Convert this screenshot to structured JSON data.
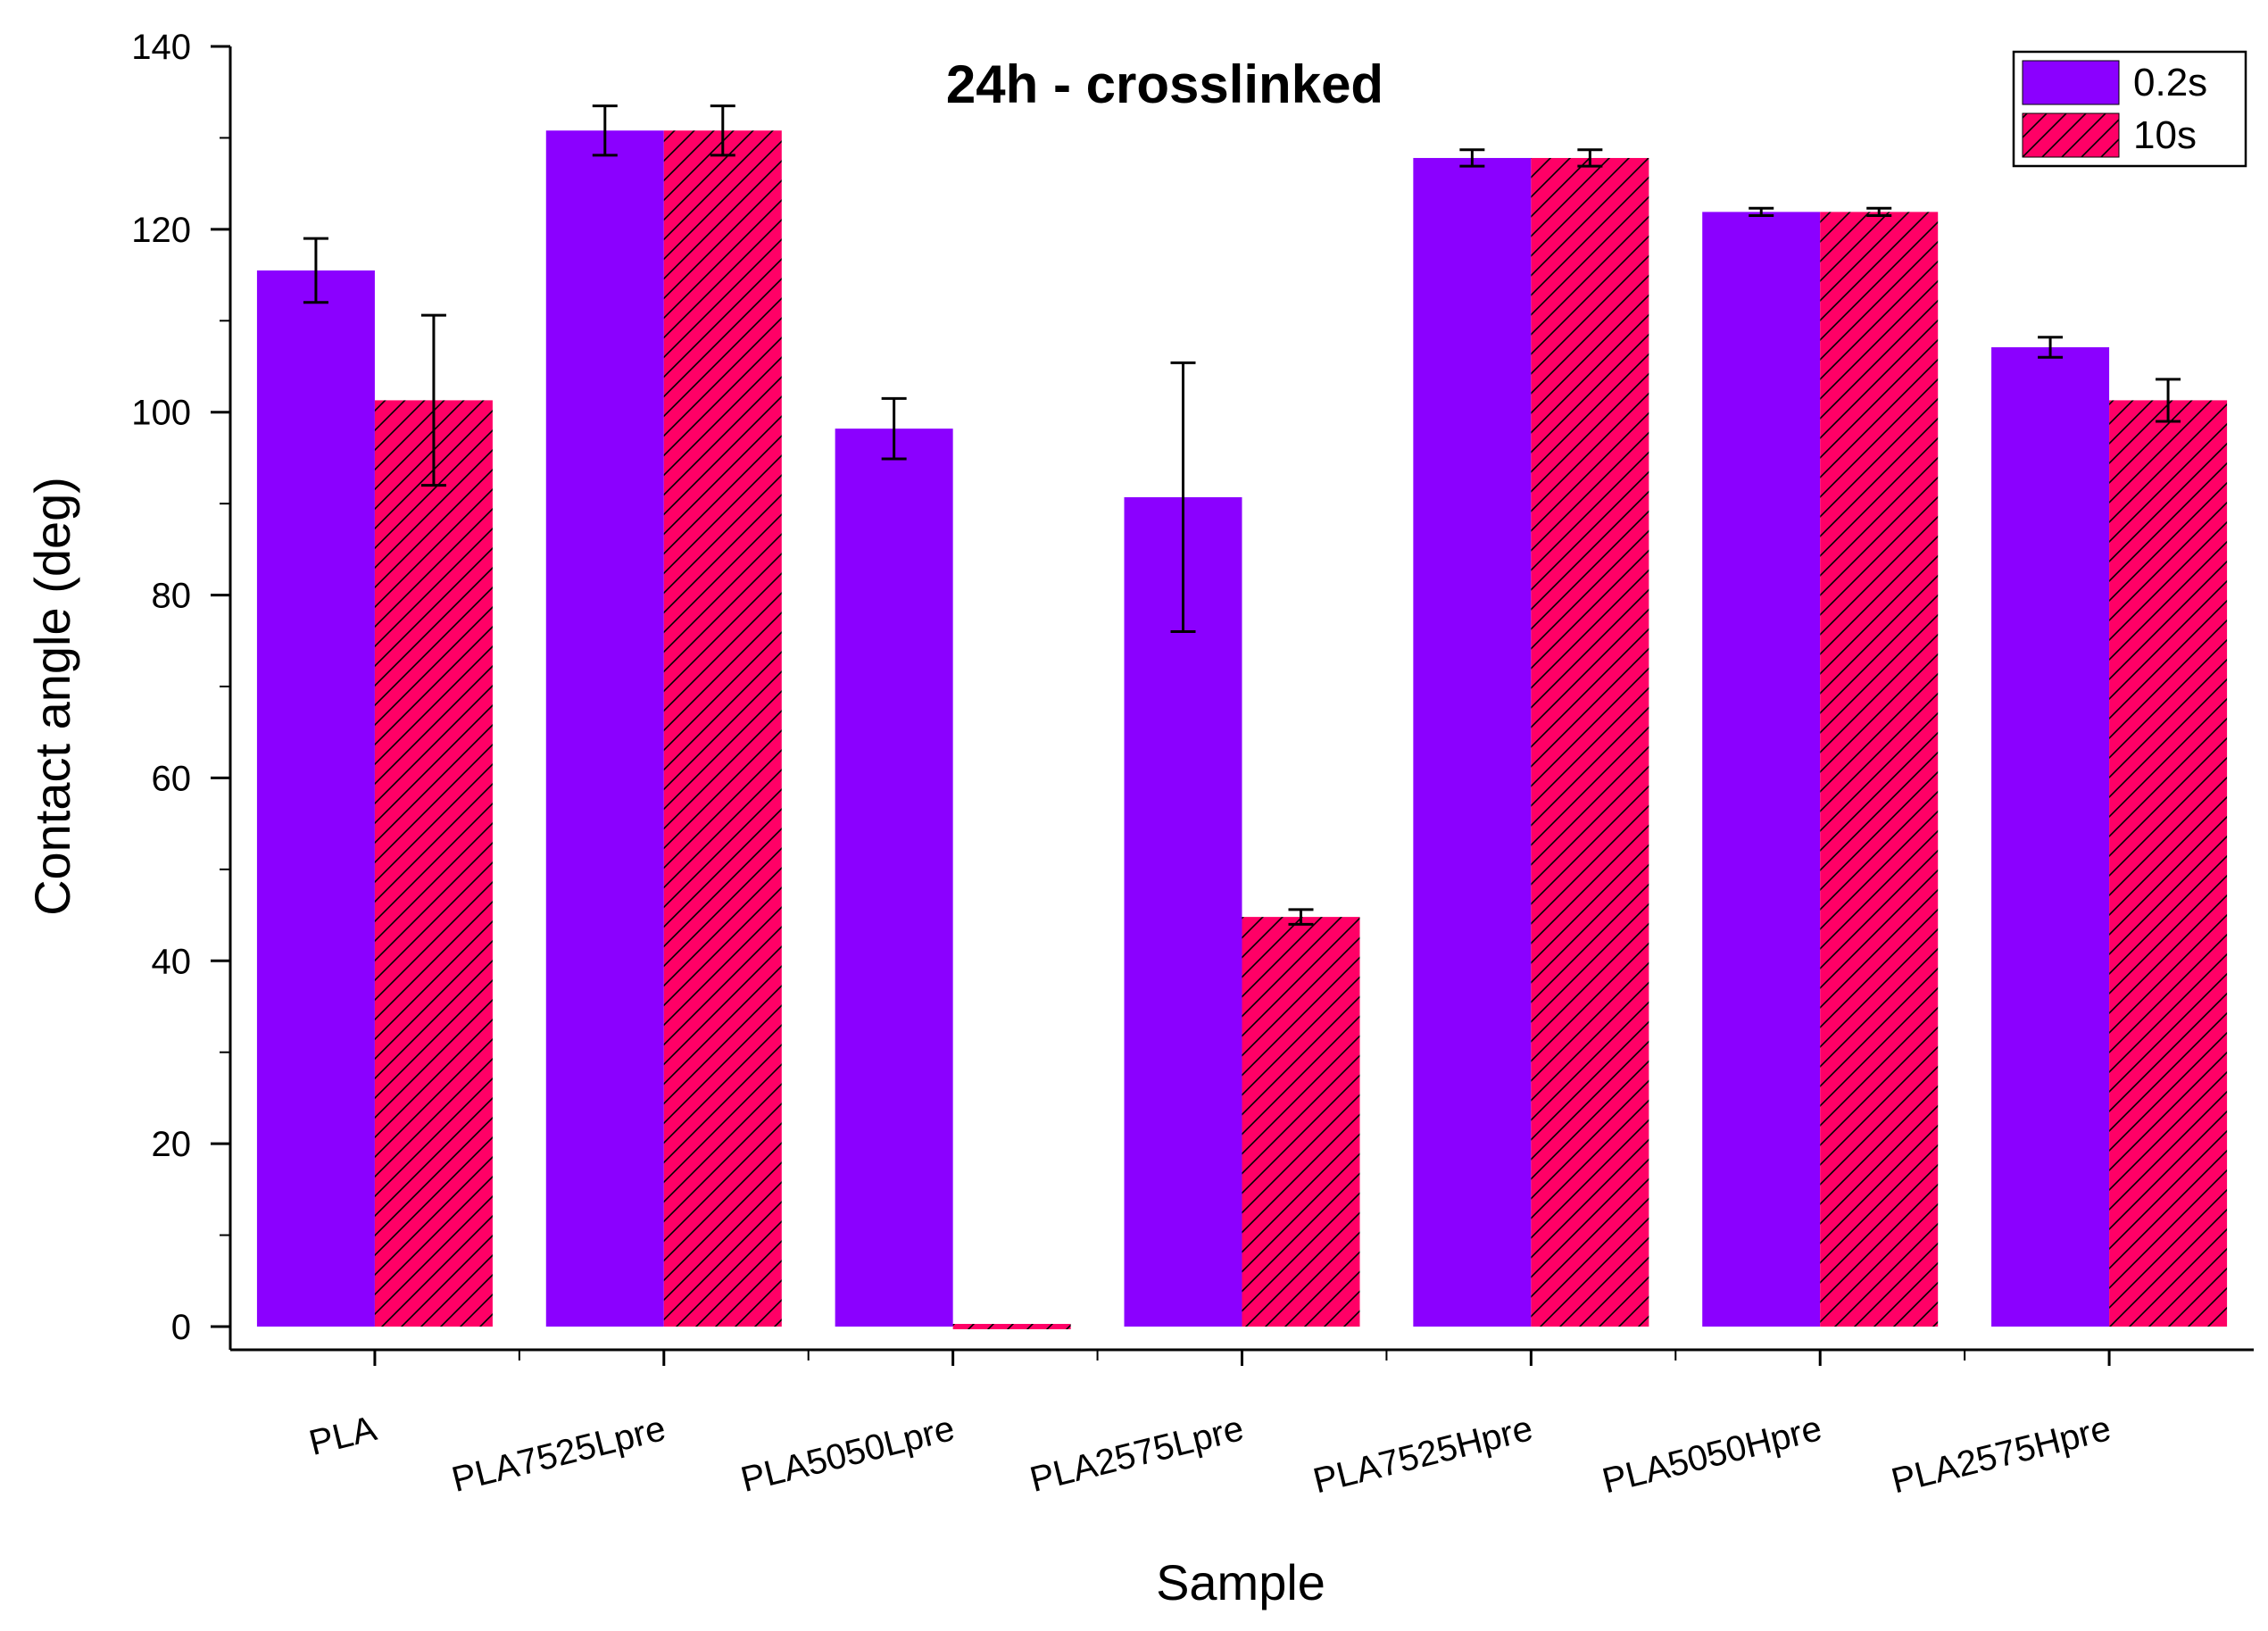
{
  "chart_data": {
    "type": "bar",
    "title": "24h - crosslinked",
    "xlabel": "Sample",
    "ylabel": "Contact angle (deg)",
    "ylim": [
      -2,
      140
    ],
    "yticks": [
      0,
      20,
      40,
      60,
      80,
      100,
      120,
      140
    ],
    "grid": false,
    "legend_position": "top-right",
    "categories": [
      "PLA",
      "PLA7525Lpre",
      "PLA5050Lpre",
      "PLA2575Lpre",
      "PLA7525Hpre",
      "PLA5050Hpre",
      "PLA2575Hpre"
    ],
    "series": [
      {
        "name": "0.2s",
        "color": "#8b00ff",
        "pattern": "solid",
        "values": [
          115.5,
          130.8,
          98.2,
          90.7,
          127.8,
          121.9,
          107.1
        ],
        "errors": [
          3.5,
          2.7,
          3.3,
          14.7,
          0.9,
          0.4,
          1.1
        ]
      },
      {
        "name": "10s",
        "color": "#ff0066",
        "pattern": "diagonal-hatch",
        "values": [
          101.3,
          130.8,
          0.0,
          44.8,
          127.8,
          121.9,
          101.3
        ],
        "errors": [
          9.3,
          2.7,
          0.0,
          0.8,
          0.9,
          0.4,
          2.3
        ]
      }
    ]
  }
}
